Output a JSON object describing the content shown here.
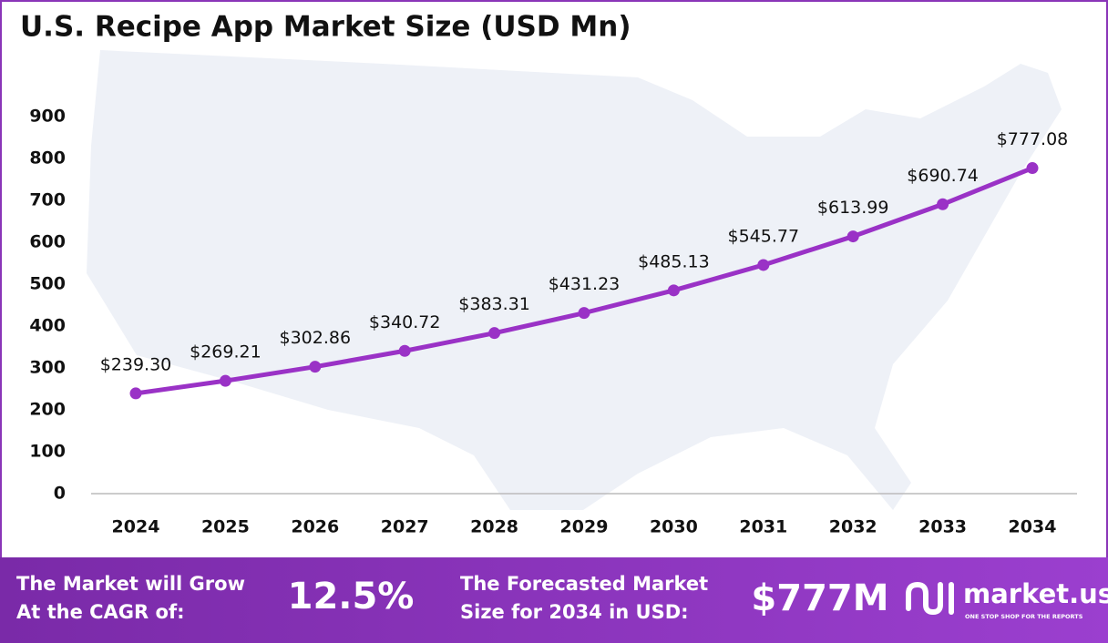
{
  "chart_data": {
    "type": "line",
    "title": "U.S. Recipe App Market Size (USD Mn)",
    "categories": [
      "2024",
      "2025",
      "2026",
      "2027",
      "2028",
      "2029",
      "2030",
      "2031",
      "2032",
      "2033",
      "2034"
    ],
    "values": [
      239.3,
      269.21,
      302.86,
      340.72,
      383.31,
      431.23,
      485.13,
      545.77,
      613.99,
      690.74,
      777.08
    ],
    "value_labels": [
      "$239.30",
      "$269.21",
      "$302.86",
      "$340.72",
      "$383.31",
      "$431.23",
      "$485.13",
      "$545.77",
      "$613.99",
      "$690.74",
      "$777.08"
    ],
    "color": "#9a32c6",
    "ylim": [
      0,
      900
    ],
    "yticks": [
      0,
      100,
      200,
      300,
      400,
      500,
      600,
      700,
      800,
      900
    ],
    "grid": false
  },
  "footer": {
    "cagr_label": [
      "The Market will Grow",
      "At the CAGR of:"
    ],
    "cagr_value": "12.5%",
    "forecast_label": [
      "The Forecasted Market",
      "Size for 2034 in USD:"
    ],
    "forecast_value": "$777M",
    "brand": "market.us",
    "tagline": "ONE STOP SHOP FOR THE REPORTS"
  }
}
